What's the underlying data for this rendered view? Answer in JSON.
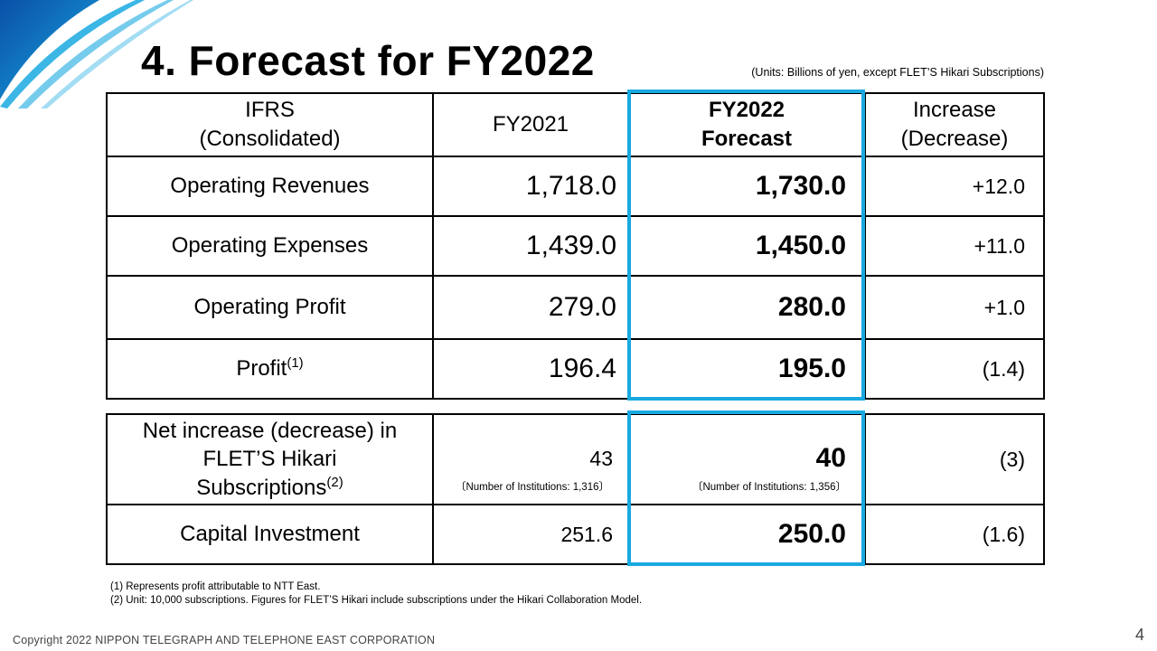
{
  "title": "4. Forecast for FY2022",
  "units_note": "(Units: Billions of yen, except FLET’S Hikari Subscriptions)",
  "header": {
    "col1_line1": "IFRS",
    "col1_line2": "(Consolidated)",
    "col2": "FY2021",
    "col3_line1": "FY2022",
    "col3_line2": "Forecast",
    "col4_line1": "Increase",
    "col4_line2": "(Decrease)"
  },
  "rows": [
    {
      "label": "Operating Revenues",
      "fy2021": "1,718.0",
      "forecast": "1,730.0",
      "change": "+12.0"
    },
    {
      "label": "Operating Expenses",
      "fy2021": "1,439.0",
      "forecast": "1,450.0",
      "change": "+11.0"
    },
    {
      "label": "Operating Profit",
      "fy2021": "279.0",
      "forecast": "280.0",
      "change": "+1.0"
    },
    {
      "label": "Profit",
      "sup": "(1)",
      "fy2021": "196.4",
      "forecast": "195.0",
      "change": "(1.4)"
    }
  ],
  "sub_rows": [
    {
      "label_line1": "Net increase (decrease) in",
      "label_line2": "FLET’S Hikari",
      "label_line3": "Subscriptions",
      "sup": "(2)",
      "fy2021": "43",
      "fy2021_note": "〔Number of Institutions: 1,316〕",
      "forecast": "40",
      "forecast_note": "〔Number of Institutions: 1,356〕",
      "change": "(3)"
    },
    {
      "label": "Capital Investment",
      "fy2021": "251.6",
      "forecast": "250.0",
      "change": "(1.6)"
    }
  ],
  "footnotes": [
    "(1)  Represents profit attributable to NTT East.",
    "(2)  Unit: 10,000 subscriptions. Figures for FLET’S Hikari include subscriptions under the Hikari Collaboration Model."
  ],
  "copyright": "Copyright 2022 NIPPON TELEGRAPH AND TELEPHONE EAST CORPORATION",
  "page_number": "4",
  "colors": {
    "highlight": "#19a9e0",
    "deco_dark": "#0a5fb4",
    "deco_light": "#19a9e0"
  }
}
